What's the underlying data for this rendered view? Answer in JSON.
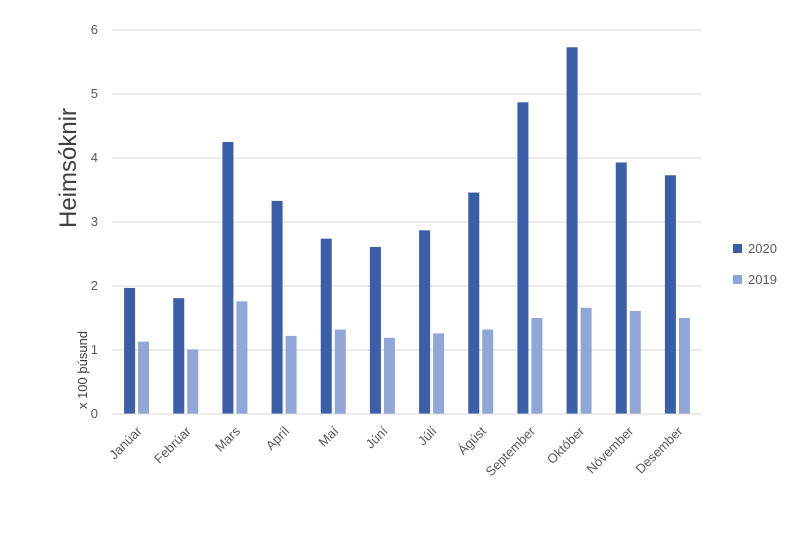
{
  "chart_data": {
    "type": "bar",
    "title": "",
    "ylabel": "Heimsóknir",
    "ylabel_unit": "x 100 þúsund",
    "xlabel": "",
    "ylim": [
      0,
      6
    ],
    "yticks": [
      "0",
      "1",
      "2",
      "3",
      "4",
      "5",
      "6"
    ],
    "grid": true,
    "legend_position": "right",
    "categories": [
      "Janúar",
      "Febrúar",
      "Mars",
      "Apríl",
      "Maí",
      "Júní",
      "Júlí",
      "Ágúst",
      "September",
      "Október",
      "Nóvember",
      "Desember"
    ],
    "series": [
      {
        "name": "2020",
        "color": "#3a5ea8",
        "values": [
          1.97,
          1.81,
          4.25,
          3.33,
          2.74,
          2.61,
          2.87,
          3.46,
          4.87,
          5.73,
          3.93,
          3.73
        ]
      },
      {
        "name": "2019",
        "color": "#8fa6d6",
        "values": [
          1.13,
          1.01,
          1.76,
          1.22,
          1.32,
          1.19,
          1.26,
          1.32,
          1.5,
          1.66,
          1.61,
          1.5
        ]
      }
    ]
  }
}
